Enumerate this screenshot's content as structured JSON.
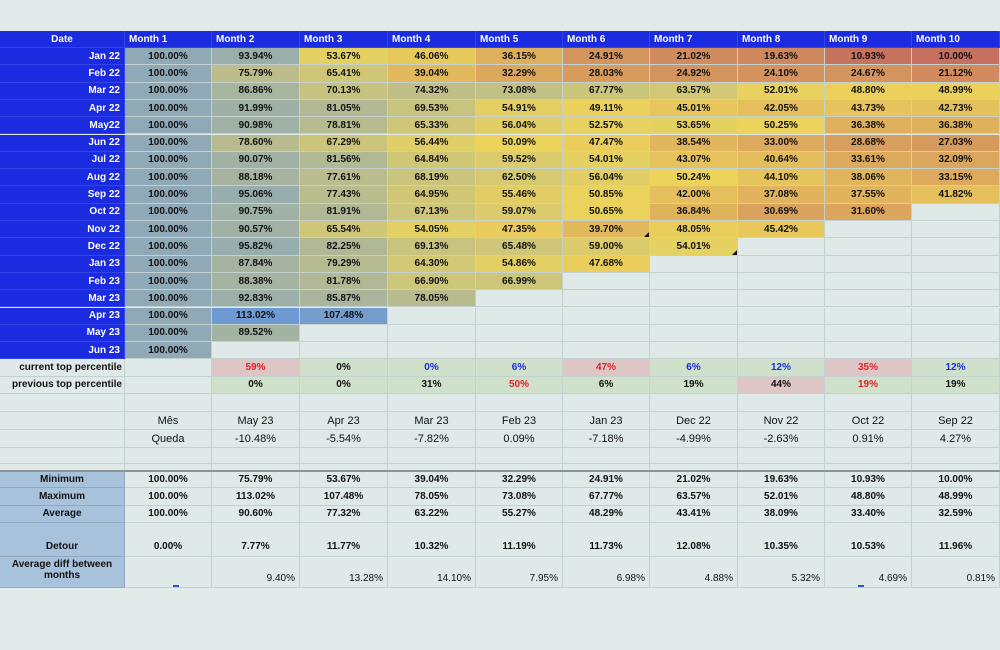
{
  "header": {
    "date_label": "Date",
    "months": [
      "Month 1",
      "Month 2",
      "Month 3",
      "Month 4",
      "Month 5",
      "Month 6",
      "Month 7",
      "Month 8",
      "Month 9",
      "Month 10"
    ]
  },
  "rows": [
    {
      "date": "Jan 22",
      "values": [
        "100.00%",
        "93.94%",
        "53.67%",
        "46.06%",
        "36.15%",
        "24.91%",
        "21.02%",
        "19.63%",
        "10.93%",
        "10.00%"
      ]
    },
    {
      "date": "Feb 22",
      "values": [
        "100.00%",
        "75.79%",
        "65.41%",
        "39.04%",
        "32.29%",
        "28.03%",
        "24.92%",
        "24.10%",
        "24.67%",
        "21.12%"
      ]
    },
    {
      "date": "Mar 22",
      "values": [
        "100.00%",
        "86.86%",
        "70.13%",
        "74.32%",
        "73.08%",
        "67.77%",
        "63.57%",
        "52.01%",
        "48.80%",
        "48.99%"
      ]
    },
    {
      "date": "Apr 22",
      "values": [
        "100.00%",
        "91.99%",
        "81.05%",
        "69.53%",
        "54.91%",
        "49.11%",
        "45.01%",
        "42.05%",
        "43.73%",
        "42.73%"
      ]
    },
    {
      "date": "May22",
      "values": [
        "100.00%",
        "90.98%",
        "78.81%",
        "65.33%",
        "56.04%",
        "52.57%",
        "53.65%",
        "50.25%",
        "36.38%",
        "36.38%"
      ]
    },
    {
      "date": "Jun 22",
      "values": [
        "100.00%",
        "78.60%",
        "67.29%",
        "56.44%",
        "50.09%",
        "47.47%",
        "38.54%",
        "33.00%",
        "28.68%",
        "27.03%"
      ]
    },
    {
      "date": "Jul 22",
      "values": [
        "100.00%",
        "90.07%",
        "81.56%",
        "64.84%",
        "59.52%",
        "54.01%",
        "43.07%",
        "40.64%",
        "33.61%",
        "32.09%"
      ]
    },
    {
      "date": "Aug 22",
      "values": [
        "100.00%",
        "88.18%",
        "77.61%",
        "68.19%",
        "62.50%",
        "56.04%",
        "50.24%",
        "44.10%",
        "38.06%",
        "33.15%"
      ]
    },
    {
      "date": "Sep 22",
      "values": [
        "100.00%",
        "95.06%",
        "77.43%",
        "64.95%",
        "55.46%",
        "50.85%",
        "42.00%",
        "37.08%",
        "37.55%",
        "41.82%"
      ]
    },
    {
      "date": "Oct 22",
      "values": [
        "100.00%",
        "90.75%",
        "81.91%",
        "67.13%",
        "59.07%",
        "50.65%",
        "36.84%",
        "30.69%",
        "31.60%"
      ]
    },
    {
      "date": "Nov 22",
      "values": [
        "100.00%",
        "90.57%",
        "65.54%",
        "54.05%",
        "47.35%",
        "39.70%",
        "48.05%",
        "45.42%"
      ]
    },
    {
      "date": "Dec 22",
      "values": [
        "100.00%",
        "95.82%",
        "82.25%",
        "69.13%",
        "65.48%",
        "59.00%",
        "54.01%"
      ]
    },
    {
      "date": "Jan 23",
      "values": [
        "100.00%",
        "87.84%",
        "79.29%",
        "64.30%",
        "54.86%",
        "47.68%"
      ]
    },
    {
      "date": "Feb 23",
      "values": [
        "100.00%",
        "88.38%",
        "81.78%",
        "66.90%",
        "66.99%"
      ]
    },
    {
      "date": "Mar 23",
      "values": [
        "100.00%",
        "92.83%",
        "85.87%",
        "78.05%"
      ]
    },
    {
      "date": "Apr 23",
      "values": [
        "100.00%",
        "113.02%",
        "107.48%"
      ]
    },
    {
      "date": "May 23",
      "values": [
        "100.00%",
        "89.52%"
      ]
    },
    {
      "date": "Jun 23",
      "values": [
        "100.00%"
      ]
    }
  ],
  "percentiles": {
    "current_label": "current top percentile",
    "previous_label": "previous top percentile",
    "current": [
      {
        "v": "59%",
        "color": "#e0222a",
        "bg": "#dfc6c6"
      },
      {
        "v": "0%",
        "color": "#111111",
        "bg": "#cfe0cb"
      },
      {
        "v": "0%",
        "color": "#1b2fe0",
        "bg": "#cfe0cb"
      },
      {
        "v": "6%",
        "color": "#1b2fe0",
        "bg": "#cfe0cb"
      },
      {
        "v": "47%",
        "color": "#e0222a",
        "bg": "#dfc6c6"
      },
      {
        "v": "6%",
        "color": "#1b2fe0",
        "bg": "#cfe0cb"
      },
      {
        "v": "12%",
        "color": "#1b2fe0",
        "bg": "#cfe0cb"
      },
      {
        "v": "35%",
        "color": "#e0222a",
        "bg": "#dfc6c6"
      },
      {
        "v": "12%",
        "color": "#1b2fe0",
        "bg": "#cfe0cb"
      }
    ],
    "previous": [
      {
        "v": "0%",
        "color": "#111111",
        "bg": "#cfe0cb"
      },
      {
        "v": "0%",
        "color": "#111111",
        "bg": "#cfe0cb"
      },
      {
        "v": "31%",
        "color": "#111111",
        "bg": "#cfe0cb"
      },
      {
        "v": "50%",
        "color": "#e0222a",
        "bg": "#cfe0cb"
      },
      {
        "v": "6%",
        "color": "#111111",
        "bg": "#cfe0cb"
      },
      {
        "v": "19%",
        "color": "#111111",
        "bg": "#cfe0cb"
      },
      {
        "v": "44%",
        "color": "#111111",
        "bg": "#dfc6c6"
      },
      {
        "v": "19%",
        "color": "#e0222a",
        "bg": "#cfe0cb"
      },
      {
        "v": "19%",
        "color": "#111111",
        "bg": "#cfe0cb"
      }
    ]
  },
  "drop": {
    "month_label": "Mês",
    "drop_label": "Queda",
    "months": [
      "May 23",
      "Apr 23",
      "Mar 23",
      "Feb 23",
      "Jan 23",
      "Dec 22",
      "Nov 22",
      "Oct 22",
      "Sep 22"
    ],
    "values": [
      "-10.48%",
      "-5.54%",
      "-7.82%",
      "0.09%",
      "-7.18%",
      "-4.99%",
      "-2.63%",
      "0.91%",
      "4.27%"
    ]
  },
  "stats": {
    "minimum_label": "Minimum",
    "maximum_label": "Maximum",
    "average_label": "Average",
    "detour_label": "Detour",
    "avgdiff_label": "Average diff between months",
    "minimum": [
      "100.00%",
      "75.79%",
      "53.67%",
      "39.04%",
      "32.29%",
      "24.91%",
      "21.02%",
      "19.63%",
      "10.93%",
      "10.00%"
    ],
    "maximum": [
      "100.00%",
      "113.02%",
      "107.48%",
      "78.05%",
      "73.08%",
      "67.77%",
      "63.57%",
      "52.01%",
      "48.80%",
      "48.99%"
    ],
    "average": [
      "100.00%",
      "90.60%",
      "77.32%",
      "63.22%",
      "55.27%",
      "48.29%",
      "43.41%",
      "38.09%",
      "33.40%",
      "32.59%"
    ],
    "detour": [
      "0.00%",
      "7.77%",
      "11.77%",
      "10.32%",
      "11.19%",
      "11.73%",
      "12.08%",
      "10.35%",
      "10.53%",
      "11.96%"
    ],
    "avgdiff": [
      "9.40%",
      "13.28%",
      "14.10%",
      "7.95%",
      "6.98%",
      "4.88%",
      "5.32%",
      "4.69%",
      "0.81%"
    ]
  },
  "colors": {
    "header_blue": "#1a2be0",
    "stat_label_bg": "#a9c2dc",
    "scale_low": "#c66f5f",
    "scale_mid": "#ecd35b",
    "scale_high": "#6e9ad3"
  }
}
